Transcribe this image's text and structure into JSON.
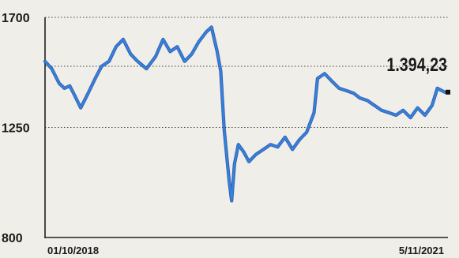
{
  "chart_data": {
    "type": "line",
    "title": "",
    "xlabel": "",
    "ylabel": "",
    "ylim": [
      800,
      1700
    ],
    "yticks": [
      800,
      1250,
      1700
    ],
    "ytick_labels": [
      "800",
      "1250",
      "1700"
    ],
    "gridlines_at": [
      1700,
      1500,
      1250
    ],
    "grid_style": "dotted",
    "xlim": [
      "01/10/2018",
      "5/11/2021"
    ],
    "xtick_labels": [
      "01/10/2018",
      "5/11/2021"
    ],
    "last_value_label": "1.394,23",
    "line_colors": [
      "#2f86d6",
      "#1e3fae"
    ],
    "series": [
      {
        "x": [
          "2018-10-01",
          "2018-10-20",
          "2018-11-10",
          "2018-11-25",
          "2018-12-10",
          "2018-12-24",
          "2019-01-10",
          "2019-01-31",
          "2019-02-20",
          "2019-03-10",
          "2019-03-31",
          "2019-04-20",
          "2019-05-10",
          "2019-05-31",
          "2019-06-20",
          "2019-07-15",
          "2019-08-10",
          "2019-08-31",
          "2019-09-20",
          "2019-10-10",
          "2019-10-31",
          "2019-11-20",
          "2019-12-10",
          "2019-12-31",
          "2020-01-15",
          "2020-01-31",
          "2020-02-10",
          "2020-02-20",
          "2020-03-05",
          "2020-03-12",
          "2020-03-20",
          "2020-03-31",
          "2020-04-15",
          "2020-04-30",
          "2020-05-20",
          "2020-06-10",
          "2020-06-30",
          "2020-07-20",
          "2020-08-10",
          "2020-08-31",
          "2020-09-20",
          "2020-10-10",
          "2020-10-31",
          "2020-11-10",
          "2020-11-30",
          "2020-12-20",
          "2021-01-10",
          "2021-01-31",
          "2021-02-20",
          "2021-03-10",
          "2021-03-31",
          "2021-04-20",
          "2021-05-10",
          "2021-05-31",
          "2021-06-20",
          "2021-07-10",
          "2021-07-31",
          "2021-08-20",
          "2021-09-10",
          "2021-09-30",
          "2021-10-15",
          "2021-11-05"
        ],
        "values": [
          1520,
          1490,
          1430,
          1410,
          1420,
          1380,
          1330,
          1390,
          1450,
          1500,
          1520,
          1580,
          1610,
          1550,
          1520,
          1490,
          1540,
          1610,
          1560,
          1580,
          1520,
          1550,
          1600,
          1640,
          1660,
          1560,
          1480,
          1240,
          1030,
          950,
          1100,
          1180,
          1150,
          1110,
          1140,
          1160,
          1180,
          1170,
          1210,
          1160,
          1200,
          1230,
          1310,
          1450,
          1470,
          1440,
          1410,
          1400,
          1390,
          1370,
          1360,
          1340,
          1320,
          1310,
          1300,
          1320,
          1290,
          1330,
          1300,
          1340,
          1410,
          1394.23
        ]
      }
    ]
  }
}
